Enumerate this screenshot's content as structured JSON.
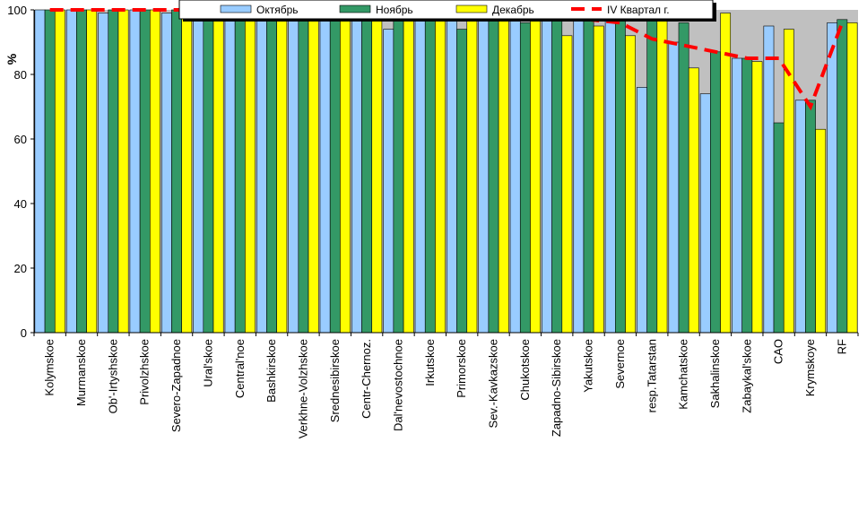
{
  "chart_data": {
    "type": "bar",
    "title": "",
    "xlabel": "",
    "ylabel": "%",
    "ylim": [
      0,
      100
    ],
    "yticks": [
      0,
      20,
      40,
      60,
      80,
      100
    ],
    "grid": false,
    "legend_position": "top",
    "categories": [
      "Kolymskoe",
      "Murmanskoe",
      "Ob'-Irtyshskoe",
      "Privolzhskoe",
      "Severo-Zapadnoe",
      "Ural'skoe",
      "Central'noe",
      "Bashkirskoe",
      "Verkhne-Volzhskoe",
      "Srednesibirskoe",
      "Centr-Chernoz.",
      "Dal'nevostochnoe",
      "Irkutskoe",
      "Primorskoe",
      "Sev.-Kavkazskoe",
      "Chukotskoe",
      "Zapadno-Sibirskoe",
      "Yakutskoe",
      "Severnoe",
      "resp.Tatarstan",
      "Kamchatskoe",
      "Sakhalinskoe",
      "Zabaykal'skoe",
      "CAO",
      "Krymskoye",
      "RF"
    ],
    "series": [
      {
        "name": "Октябрь",
        "type": "bar",
        "color": "#99ccff",
        "values": [
          100,
          100,
          99,
          100,
          99,
          100,
          99,
          98,
          99,
          99,
          98,
          94,
          98,
          99,
          99,
          98,
          100,
          98,
          99,
          76,
          90,
          74,
          85,
          95,
          72,
          96
        ]
      },
      {
        "name": "Ноябрь",
        "type": "bar",
        "color": "#339966",
        "values": [
          100,
          100,
          100,
          100,
          100,
          99,
          100,
          100,
          98,
          99,
          99,
          99,
          98,
          94,
          98,
          96,
          100,
          98,
          98,
          98,
          96,
          87,
          85,
          65,
          72,
          97
        ]
      },
      {
        "name": "Декабрь",
        "type": "bar",
        "color": "#ffff00",
        "values": [
          100,
          100,
          100,
          100,
          100,
          100,
          100,
          100,
          99,
          99,
          99,
          99,
          99,
          99,
          98,
          99,
          92,
          95,
          92,
          98,
          82,
          99,
          84,
          94,
          63,
          96
        ]
      },
      {
        "name": "IV Квартал г.",
        "type": "line",
        "color": "#ff0000",
        "values": [
          100,
          100,
          100,
          100,
          100,
          100,
          99.5,
          99,
          99,
          99,
          98.5,
          98,
          98,
          98,
          98,
          98,
          97,
          97,
          96,
          91,
          89,
          87,
          85,
          85,
          70,
          96
        ]
      }
    ]
  }
}
